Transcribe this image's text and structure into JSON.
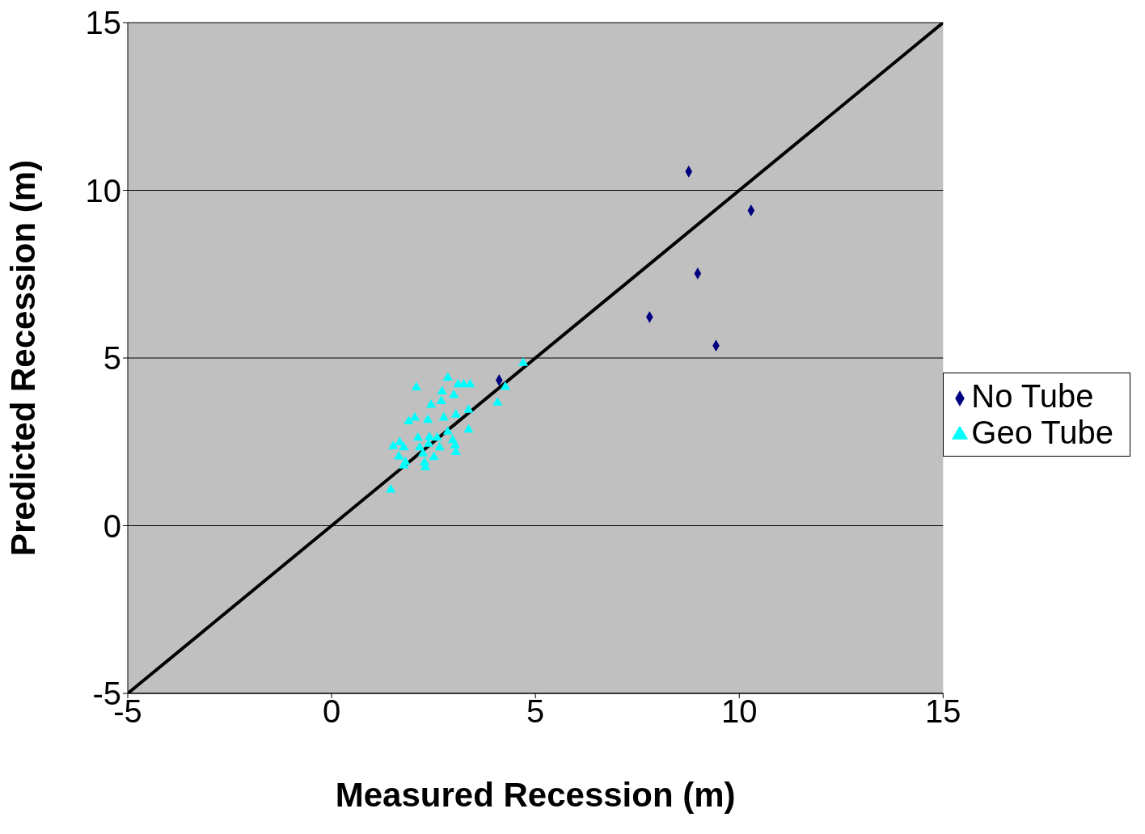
{
  "chart_data": {
    "type": "scatter",
    "xlabel": "Measured Recession (m)",
    "ylabel": "Predicted Recession (m)",
    "xlim": [
      -5,
      15
    ],
    "xticks": [
      -5,
      0,
      5,
      10,
      15
    ],
    "ylim": [
      -5,
      15
    ],
    "yticks": [
      -5,
      0,
      5,
      10,
      15
    ],
    "grid": "y",
    "legend": "right",
    "series": [
      {
        "name": "No Tube",
        "color": "#000080",
        "marker": "diamond",
        "x": [
          8.76,
          10.29,
          8.98,
          7.8,
          9.43,
          4.11
        ],
        "values": [
          10.56,
          9.4,
          7.52,
          6.22,
          5.37,
          4.34
        ]
      },
      {
        "name": "Geo Tube",
        "color": "#00ffff",
        "marker": "triangle",
        "x": [
          4.7,
          4.26,
          4.07,
          2.85,
          3.1,
          3.24,
          3.4,
          2.08,
          2.71,
          3.0,
          2.69,
          2.44,
          3.36,
          3.05,
          2.75,
          2.04,
          1.89,
          2.36,
          3.36,
          2.85,
          2.12,
          2.4,
          2.59,
          2.97,
          3.03,
          1.67,
          1.51,
          1.77,
          2.16,
          2.38,
          2.65,
          3.05,
          2.24,
          2.51,
          1.65,
          1.81,
          1.77,
          2.28,
          2.3,
          1.45
        ],
        "values": [
          4.85,
          4.14,
          3.67,
          4.41,
          4.21,
          4.21,
          4.21,
          4.12,
          4.0,
          3.89,
          3.71,
          3.6,
          3.45,
          3.31,
          3.22,
          3.22,
          3.11,
          3.15,
          2.86,
          2.8,
          2.62,
          2.64,
          2.62,
          2.55,
          2.39,
          2.48,
          2.37,
          2.33,
          2.33,
          2.44,
          2.33,
          2.19,
          2.15,
          2.04,
          2.06,
          1.9,
          1.79,
          1.88,
          1.74,
          1.07
        ]
      },
      {
        "type": "line",
        "color": "#000000",
        "marker": "none",
        "line_style": "solid",
        "x": [
          -5,
          15
        ],
        "values": [
          -5,
          15
        ]
      }
    ]
  }
}
